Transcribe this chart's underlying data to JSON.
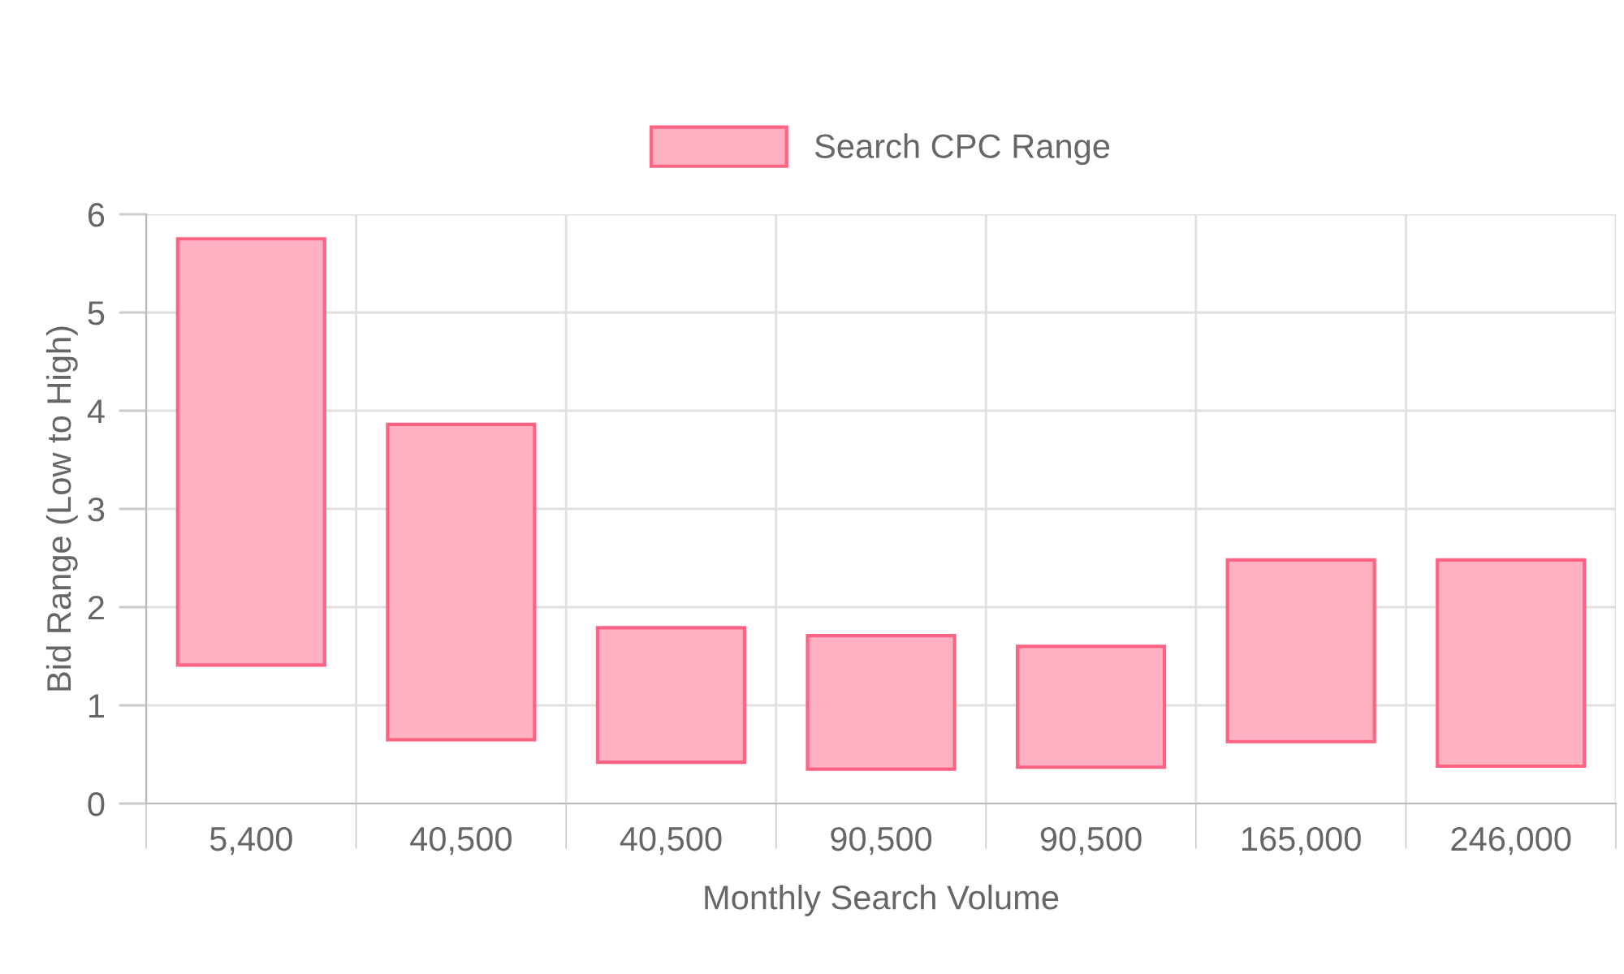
{
  "chart_data": {
    "type": "bar",
    "xlabel": "Monthly Search Volume",
    "ylabel": "Bid Range (Low to High)",
    "categories": [
      "5,400",
      "40,500",
      "40,500",
      "90,500",
      "90,500",
      "165,000",
      "246,000"
    ],
    "series": [
      {
        "name": "Search CPC Range",
        "color": "#ffb1c1",
        "values": [
          4.34,
          3.21,
          1.37,
          1.36,
          1.23,
          1.85,
          2.1
        ],
        "base": [
          1.41,
          0.65,
          0.42,
          0.35,
          0.37,
          0.63,
          0.38
        ]
      }
    ],
    "ylim": [
      0,
      6
    ],
    "yticks": [
      0,
      1,
      2,
      3,
      4,
      5,
      6
    ],
    "grid": true,
    "legend": "top"
  }
}
